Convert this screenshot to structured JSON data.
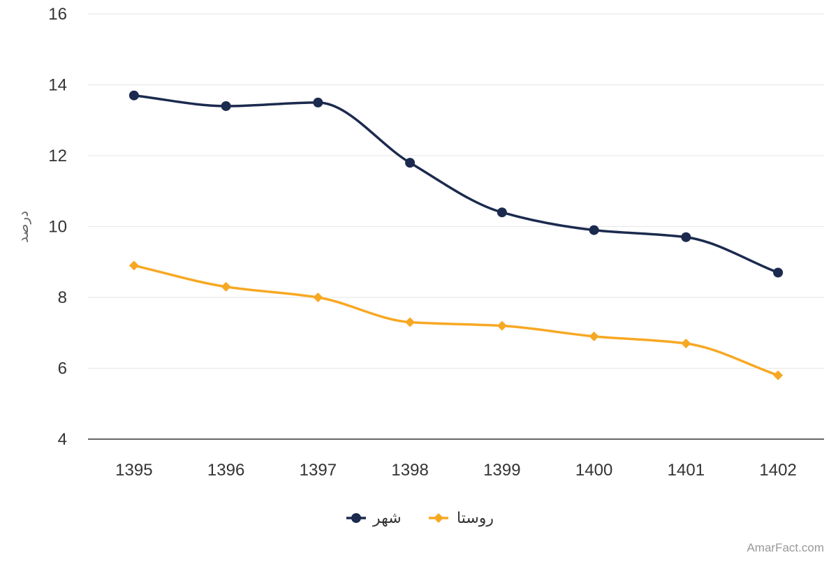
{
  "chart_data": {
    "type": "line",
    "x": [
      "1395",
      "1396",
      "1397",
      "1398",
      "1399",
      "1400",
      "1401",
      "1402"
    ],
    "series": [
      {
        "name": "شهر",
        "values": [
          13.7,
          13.4,
          13.5,
          11.8,
          10.4,
          9.9,
          9.7,
          8.7
        ],
        "color": "#1b2a4e",
        "marker": "circle"
      },
      {
        "name": "روستا",
        "values": [
          8.9,
          8.3,
          8.0,
          7.3,
          7.2,
          6.9,
          6.7,
          5.8
        ],
        "color": "#f7a823",
        "marker": "diamond"
      }
    ],
    "ylabel": "درصد",
    "xlabel": "",
    "ylim": [
      4,
      16
    ],
    "yticks": [
      "4",
      "6",
      "8",
      "10",
      "12",
      "14",
      "16"
    ],
    "grid": true,
    "smooth": true,
    "legend_position": "bottom-center"
  },
  "credit": "AmarFact.com"
}
